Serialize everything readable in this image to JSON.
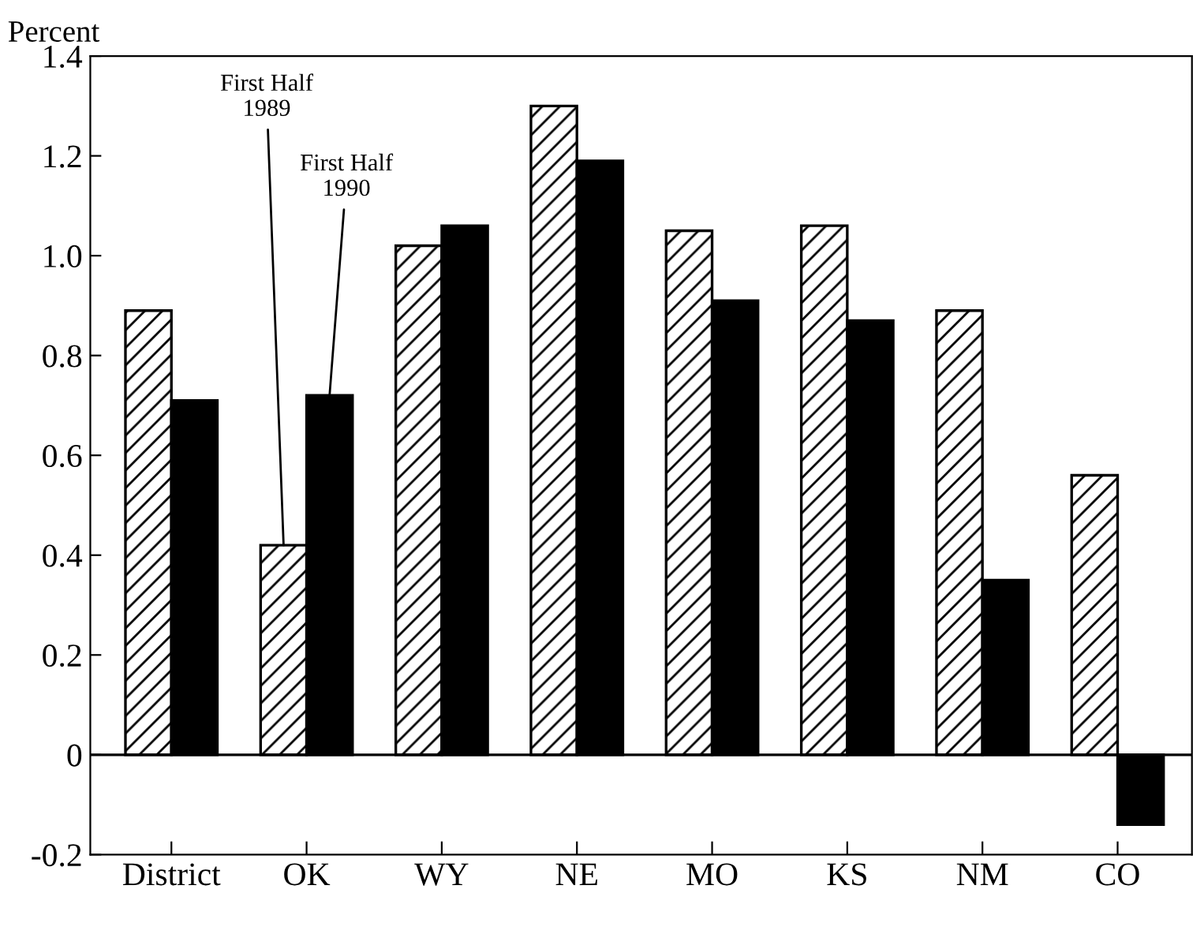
{
  "chart_data": {
    "type": "bar",
    "ylabel": "Percent",
    "categories": [
      "District",
      "OK",
      "WY",
      "NE",
      "MO",
      "KS",
      "NM",
      "CO"
    ],
    "series": [
      {
        "name": "First Half\n1989",
        "color": "#ffffff",
        "values": [
          0.89,
          0.42,
          1.02,
          1.3,
          1.05,
          1.06,
          0.89,
          0.56
        ]
      },
      {
        "name": "First Half\n1990",
        "color": "#000000",
        "values": [
          0.71,
          0.72,
          1.06,
          1.19,
          0.91,
          0.87,
          0.35,
          -0.14
        ]
      }
    ],
    "ylim": [
      -0.2,
      1.4
    ],
    "yticks": [
      {
        "value": -0.2,
        "label": "-0.2"
      },
      0,
      0.2,
      0.4,
      0.6,
      0.8,
      {
        "value": 1.0,
        "label": "1.0"
      },
      1.2,
      1.4
    ],
    "ref_lines": [
      {
        "axis": "y",
        "value": 0,
        "color": "#000000"
      }
    ],
    "grid": false,
    "legend": false
  }
}
